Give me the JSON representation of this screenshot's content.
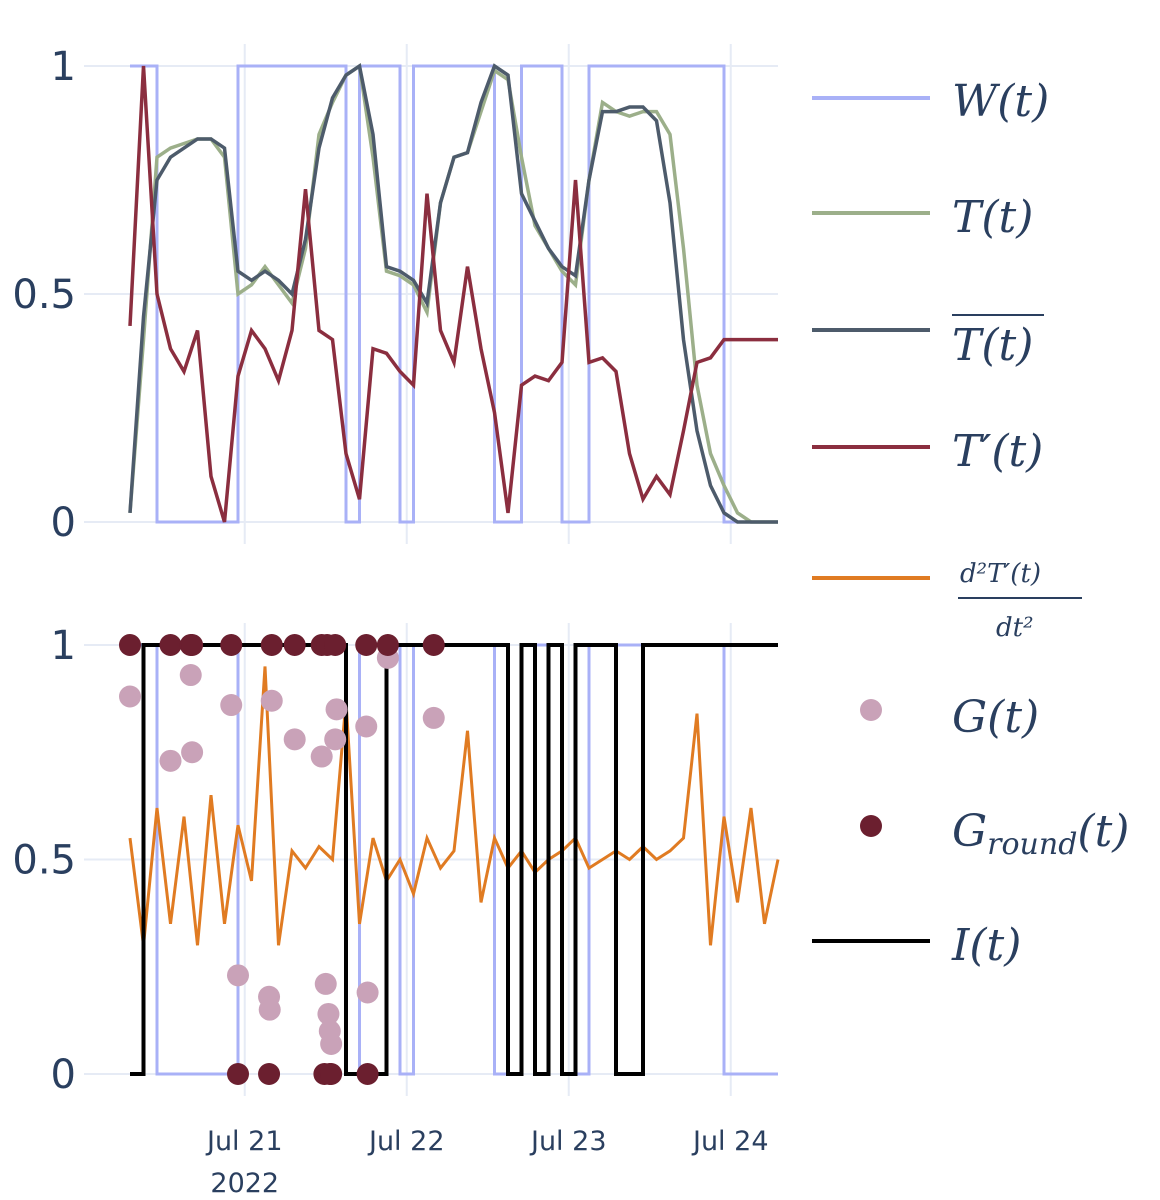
{
  "chart_data": [
    {
      "type": "line",
      "panel": "top",
      "ylim": [
        0,
        1
      ],
      "y_ticks": [
        "0",
        "0.5",
        "1"
      ],
      "grid": true,
      "x": [
        "Jul 20 07:00",
        "Jul 20 09:00",
        "Jul 20 11:00",
        "Jul 20 13:00",
        "Jul 20 15:00",
        "Jul 20 17:00",
        "Jul 20 19:00",
        "Jul 20 21:00",
        "Jul 20 23:00",
        "Jul 21 01:00",
        "Jul 21 03:00",
        "Jul 21 05:00",
        "Jul 21 07:00",
        "Jul 21 09:00",
        "Jul 21 11:00",
        "Jul 21 13:00",
        "Jul 21 15:00",
        "Jul 21 17:00",
        "Jul 21 19:00",
        "Jul 21 21:00",
        "Jul 21 23:00",
        "Jul 22 01:00",
        "Jul 22 03:00",
        "Jul 22 05:00",
        "Jul 22 07:00",
        "Jul 22 09:00",
        "Jul 22 11:00",
        "Jul 22 13:00",
        "Jul 22 15:00",
        "Jul 22 17:00",
        "Jul 22 19:00",
        "Jul 22 21:00",
        "Jul 22 23:00",
        "Jul 23 01:00",
        "Jul 23 03:00",
        "Jul 23 05:00",
        "Jul 23 07:00",
        "Jul 23 09:00",
        "Jul 23 11:00",
        "Jul 23 13:00",
        "Jul 23 15:00",
        "Jul 23 17:00",
        "Jul 23 19:00",
        "Jul 23 21:00",
        "Jul 23 23:00",
        "Jul 24 01:00",
        "Jul 24 03:00",
        "Jul 24 05:00",
        "Jul 24 07:00"
      ],
      "series": [
        {
          "name": "W(t)",
          "color": "#a9b1f7",
          "shape": "step",
          "values": [
            1,
            1,
            0,
            0,
            0,
            0,
            0,
            0,
            1,
            1,
            1,
            1,
            1,
            1,
            1,
            1,
            0,
            1,
            1,
            1,
            0,
            1,
            1,
            1,
            1,
            1,
            1,
            0,
            0,
            1,
            1,
            1,
            0,
            0,
            1,
            1,
            1,
            1,
            1,
            1,
            1,
            1,
            1,
            1,
            0,
            0,
            0,
            0,
            0
          ]
        },
        {
          "name": "T(t)",
          "color": "#9caf8a",
          "values": [
            0.02,
            0.4,
            0.8,
            0.82,
            0.83,
            0.84,
            0.84,
            0.8,
            0.5,
            0.52,
            0.56,
            0.52,
            0.48,
            0.6,
            0.85,
            0.92,
            0.98,
            1.0,
            0.8,
            0.55,
            0.54,
            0.52,
            0.46,
            0.7,
            0.8,
            0.81,
            0.9,
            0.99,
            0.97,
            0.8,
            0.65,
            0.6,
            0.55,
            0.52,
            0.75,
            0.92,
            0.9,
            0.89,
            0.9,
            0.9,
            0.85,
            0.6,
            0.3,
            0.15,
            0.08,
            0.02,
            0.0,
            0.0,
            0.0
          ]
        },
        {
          "name": "T(t) mean",
          "color": "#4d5b6b",
          "values": [
            0.02,
            0.45,
            0.75,
            0.8,
            0.82,
            0.84,
            0.84,
            0.82,
            0.55,
            0.53,
            0.55,
            0.53,
            0.5,
            0.62,
            0.82,
            0.93,
            0.98,
            1.0,
            0.85,
            0.56,
            0.55,
            0.53,
            0.48,
            0.7,
            0.8,
            0.81,
            0.92,
            1.0,
            0.98,
            0.72,
            0.66,
            0.6,
            0.56,
            0.54,
            0.75,
            0.9,
            0.9,
            0.91,
            0.91,
            0.88,
            0.7,
            0.4,
            0.2,
            0.08,
            0.02,
            0.0,
            0.0,
            0.0,
            0.0
          ]
        },
        {
          "name": "T'(t)",
          "color": "#8b2e3f",
          "values": [
            0.43,
            1.0,
            0.5,
            0.38,
            0.33,
            0.42,
            0.1,
            0.0,
            0.32,
            0.42,
            0.38,
            0.31,
            0.42,
            0.73,
            0.42,
            0.4,
            0.15,
            0.05,
            0.38,
            0.37,
            0.33,
            0.3,
            0.72,
            0.42,
            0.35,
            0.56,
            0.38,
            0.24,
            0.02,
            0.3,
            0.32,
            0.31,
            0.35,
            0.75,
            0.35,
            0.36,
            0.33,
            0.15,
            0.05,
            0.1,
            0.06,
            0.2,
            0.35,
            0.36,
            0.4,
            0.4,
            0.4,
            0.4,
            0.4
          ]
        }
      ]
    },
    {
      "type": "scatter",
      "panel": "bottom",
      "ylim": [
        0,
        1
      ],
      "y_ticks": [
        "0",
        "0.5",
        "1"
      ],
      "x_ticks": [
        "Jul 21",
        "Jul 22",
        "Jul 23",
        "Jul 24"
      ],
      "x_year_label": "2022",
      "grid": true,
      "series": [
        {
          "name": "d2T'(t)/dt2",
          "color": "#e07b22",
          "shape": "line",
          "values": [
            0.55,
            0.3,
            0.62,
            0.35,
            0.6,
            0.3,
            0.65,
            0.35,
            0.58,
            0.45,
            0.95,
            0.3,
            0.52,
            0.48,
            0.53,
            0.5,
            0.87,
            0.35,
            0.55,
            0.45,
            0.5,
            0.42,
            0.55,
            0.48,
            0.52,
            0.8,
            0.4,
            0.55,
            0.48,
            0.52,
            0.47,
            0.5,
            0.52,
            0.55,
            0.48,
            0.5,
            0.52,
            0.5,
            0.53,
            0.5,
            0.52,
            0.55,
            0.84,
            0.3,
            0.6,
            0.4,
            0.62,
            0.35,
            0.5
          ]
        },
        {
          "name": "G(t)",
          "color": "#c9a2b8",
          "points": [
            [
              0,
              0.88
            ],
            [
              3,
              0.73
            ],
            [
              4.5,
              0.93
            ],
            [
              4.6,
              0.75
            ],
            [
              7.5,
              0.86
            ],
            [
              8,
              0.23
            ],
            [
              10.3,
              0.18
            ],
            [
              10.35,
              0.15
            ],
            [
              10.5,
              0.87
            ],
            [
              12.2,
              0.78
            ],
            [
              14.2,
              0.74
            ],
            [
              14.5,
              0.21
            ],
            [
              14.7,
              0.14
            ],
            [
              14.8,
              0.1
            ],
            [
              14.9,
              0.07
            ],
            [
              15.2,
              0.78
            ],
            [
              15.3,
              0.85
            ],
            [
              17.5,
              0.81
            ],
            [
              17.6,
              0.19
            ],
            [
              19.1,
              0.97
            ],
            [
              22.5,
              0.83
            ]
          ]
        },
        {
          "name": "G_round(t)",
          "color": "#6b1f2f",
          "points": [
            [
              0,
              1
            ],
            [
              3,
              1
            ],
            [
              4.5,
              1
            ],
            [
              4.6,
              1
            ],
            [
              7.5,
              1
            ],
            [
              8,
              0
            ],
            [
              10.3,
              0
            ],
            [
              10.5,
              1
            ],
            [
              12.2,
              1
            ],
            [
              14.2,
              1
            ],
            [
              14.4,
              0
            ],
            [
              14.6,
              1
            ],
            [
              14.8,
              0
            ],
            [
              14.9,
              0
            ],
            [
              15.2,
              1
            ],
            [
              17.5,
              1
            ],
            [
              17.6,
              0
            ],
            [
              19.1,
              1
            ],
            [
              22.5,
              1
            ]
          ]
        },
        {
          "name": "I(t)",
          "color": "#000000",
          "shape": "step",
          "values": [
            0,
            1,
            1,
            1,
            1,
            1,
            1,
            1,
            1,
            1,
            1,
            1,
            1,
            1,
            1,
            1,
            0,
            0,
            0,
            1,
            1,
            1,
            1,
            1,
            1,
            1,
            1,
            1,
            0,
            1,
            0,
            1,
            0,
            1,
            1,
            1,
            0,
            0,
            1,
            1,
            1,
            1,
            1,
            1,
            1,
            1,
            1,
            1,
            1
          ]
        }
      ]
    }
  ],
  "legend": {
    "W": "W(t)",
    "T": "T(t)",
    "Tbar": "T(t)",
    "Tprime": "T′(t)",
    "d2_num": "d²T′(t)",
    "d2_den": "dt²",
    "G": "G(t)",
    "Ground_main": "G",
    "Ground_sub": "round",
    "Ground_tail": "(t)",
    "I": "I(t)"
  }
}
